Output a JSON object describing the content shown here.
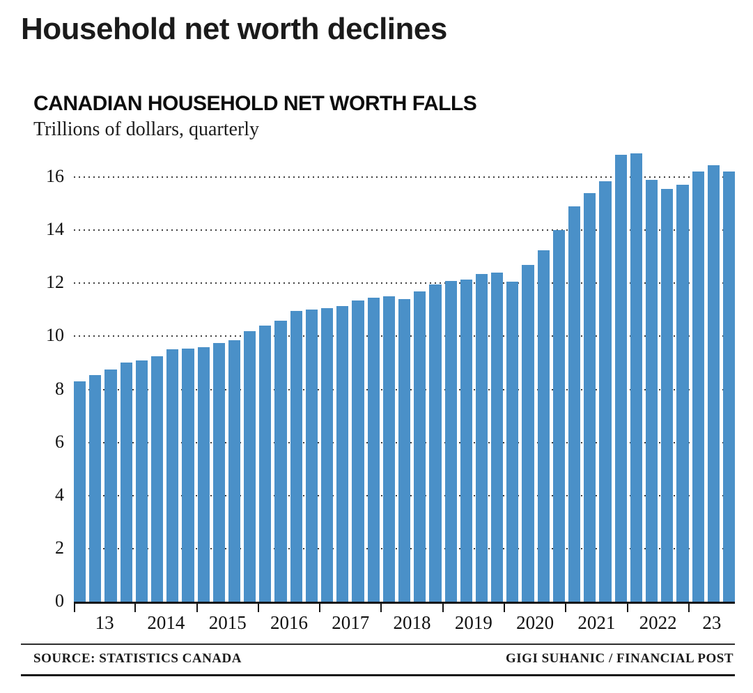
{
  "headline": "Household net worth declines",
  "chart": {
    "title": "CANADIAN HOUSEHOLD NET WORTH FALLS",
    "subtitle": "Trillions of dollars, quarterly"
  },
  "footer": {
    "source": "SOURCE: STATISTICS CANADA",
    "credit": "GIGI SUHANIC / FINANCIAL POST"
  },
  "chart_data": {
    "type": "bar",
    "title": "CANADIAN HOUSEHOLD NET WORTH FALLS",
    "subtitle": "Trillions of dollars, quarterly",
    "unit": "trillions of dollars",
    "frequency": "quarterly",
    "bar_color": "#4a90c8",
    "grid": "dotted horizontal",
    "legend": "none",
    "ylim": [
      0,
      17
    ],
    "yticks": [
      0,
      2,
      4,
      6,
      8,
      10,
      12,
      14,
      16
    ],
    "x_tick_labels": [
      "13",
      "2014",
      "2015",
      "2016",
      "2017",
      "2018",
      "2019",
      "2020",
      "2021",
      "2022",
      "23"
    ],
    "x_groups": [
      {
        "label": "13",
        "quarters": 4
      },
      {
        "label": "2014",
        "quarters": 4
      },
      {
        "label": "2015",
        "quarters": 4
      },
      {
        "label": "2016",
        "quarters": 4
      },
      {
        "label": "2017",
        "quarters": 4
      },
      {
        "label": "2018",
        "quarters": 4
      },
      {
        "label": "2019",
        "quarters": 4
      },
      {
        "label": "2020",
        "quarters": 4
      },
      {
        "label": "2021",
        "quarters": 4
      },
      {
        "label": "2022",
        "quarters": 4
      },
      {
        "label": "23",
        "quarters": 3
      }
    ],
    "x": [
      "2013 Q1",
      "2013 Q2",
      "2013 Q3",
      "2013 Q4",
      "2014 Q1",
      "2014 Q2",
      "2014 Q3",
      "2014 Q4",
      "2015 Q1",
      "2015 Q2",
      "2015 Q3",
      "2015 Q4",
      "2016 Q1",
      "2016 Q2",
      "2016 Q3",
      "2016 Q4",
      "2017 Q1",
      "2017 Q2",
      "2017 Q3",
      "2017 Q4",
      "2018 Q1",
      "2018 Q2",
      "2018 Q3",
      "2018 Q4",
      "2019 Q1",
      "2019 Q2",
      "2019 Q3",
      "2019 Q4",
      "2020 Q1",
      "2020 Q2",
      "2020 Q3",
      "2020 Q4",
      "2021 Q1",
      "2021 Q2",
      "2021 Q3",
      "2021 Q4",
      "2022 Q1",
      "2022 Q2",
      "2022 Q3",
      "2022 Q4",
      "2023 Q1",
      "2023 Q2",
      "2023 Q3"
    ],
    "values": [
      8.3,
      8.55,
      8.75,
      9.0,
      9.1,
      9.25,
      9.5,
      9.55,
      9.6,
      9.75,
      9.85,
      10.2,
      10.4,
      10.6,
      10.95,
      11.0,
      11.05,
      11.15,
      11.35,
      11.45,
      11.5,
      11.4,
      11.7,
      11.95,
      12.1,
      12.15,
      12.35,
      12.4,
      12.05,
      12.7,
      13.25,
      14.0,
      14.9,
      15.4,
      15.85,
      16.85,
      16.9,
      15.9,
      15.55,
      15.7,
      16.2,
      16.45,
      16.2
    ]
  }
}
